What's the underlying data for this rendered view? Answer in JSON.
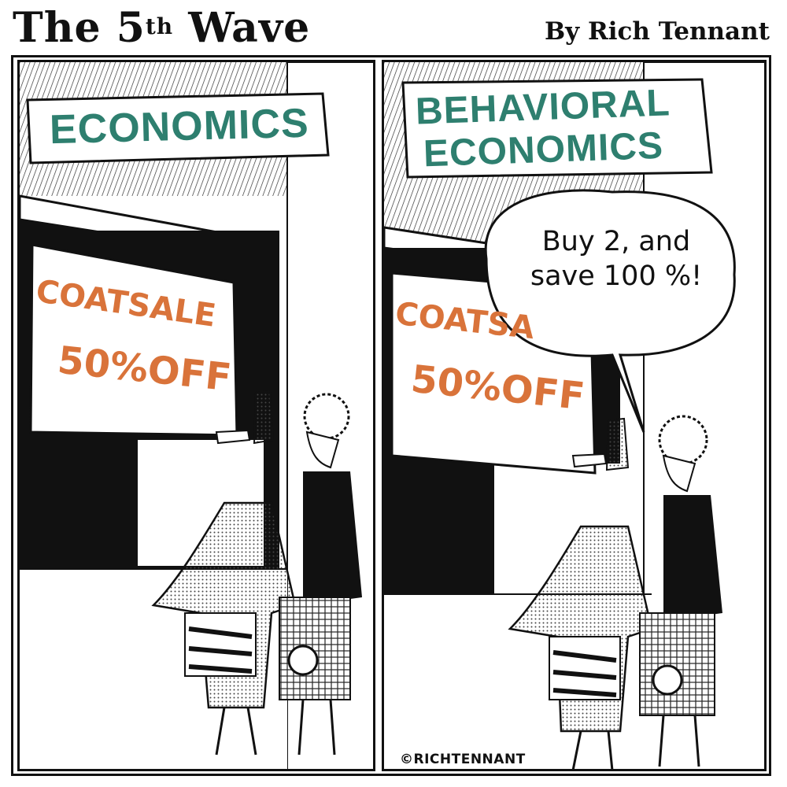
{
  "masthead": {
    "title_prefix": "The 5",
    "title_sup": "th",
    "title_suffix": " Wave",
    "byline": "By Rich Tennant"
  },
  "panel_left": {
    "sign": "ECONOMICS",
    "sale_line1": "COATSALE",
    "sale_line2": "50%OFF"
  },
  "panel_right": {
    "sign_line1": "BEHAVIORAL",
    "sign_line2": "ECONOMICS",
    "sale_line1": "COATSA",
    "sale_line2": "50%OFF",
    "bubble_line1": "Buy 2, and",
    "bubble_line2": "save 100 %!",
    "signature": "©RICHTENNANT"
  },
  "colors": {
    "sign_text": "#2e7f6f",
    "sale_text": "#d9733a",
    "ink": "#111111"
  }
}
